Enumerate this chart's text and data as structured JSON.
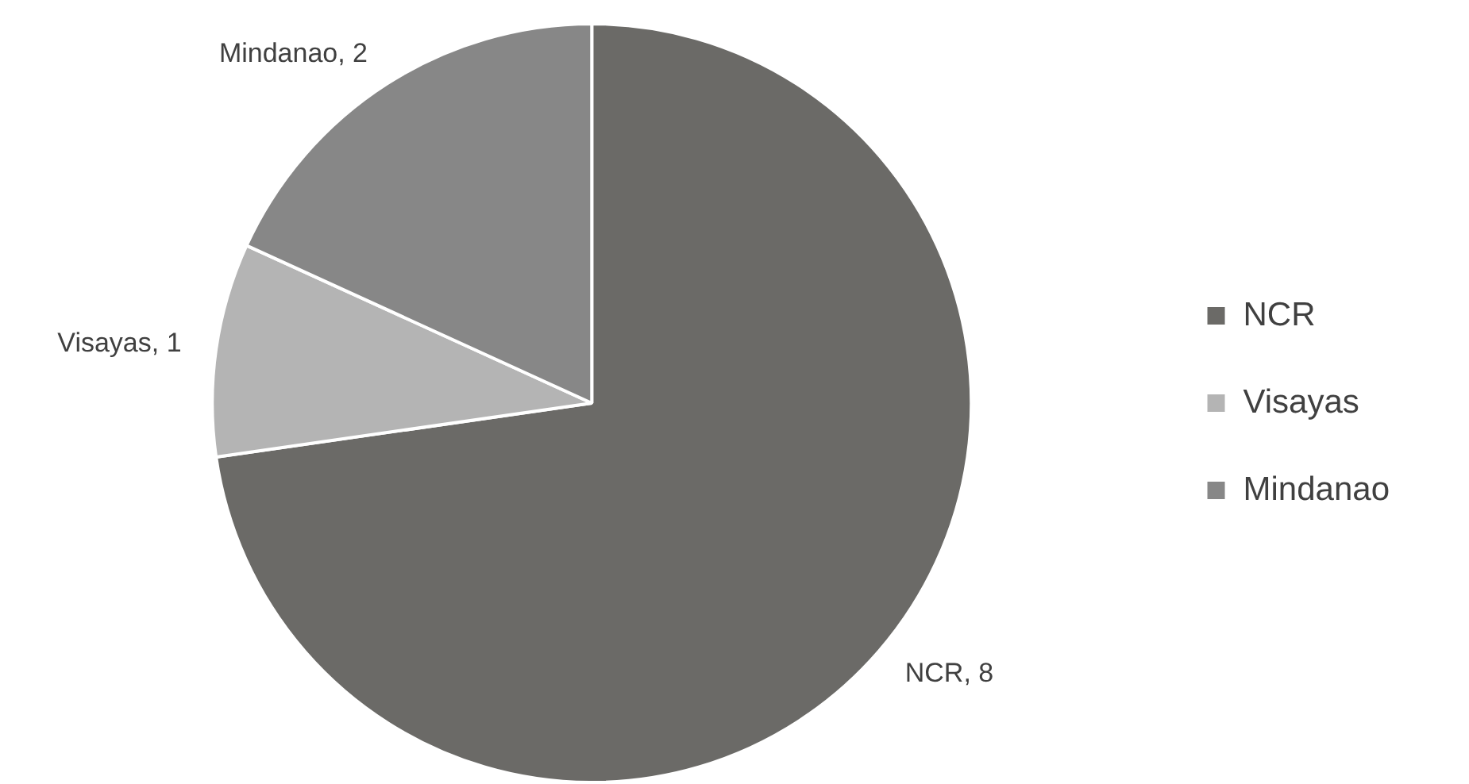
{
  "chart_data": {
    "type": "pie",
    "categories": [
      "NCR",
      "Visayas",
      "Mindanao"
    ],
    "values": [
      8,
      1,
      2
    ],
    "colors": [
      "#6b6a67",
      "#b4b4b4",
      "#878787"
    ],
    "value_labels": [
      "NCR, 8",
      "Visayas, 1",
      "Mindanao, 2"
    ],
    "legend": "right"
  }
}
